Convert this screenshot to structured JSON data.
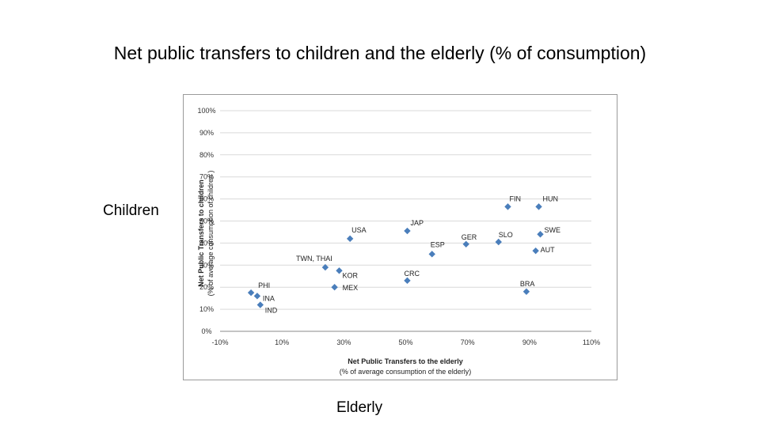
{
  "slide": {
    "title": "Net public transfers to children and the elderly (% of consumption)",
    "left_label": "Children",
    "bottom_label": "Elderly"
  },
  "chart_data": {
    "type": "scatter",
    "title": "",
    "xlabel": "Net Public Transfers to the elderly",
    "xlabel_sub": "(% of average consumption of the elderly)",
    "ylabel": "Net Public Transfers to children",
    "ylabel_sub": "(% of average consumption of children )",
    "xlim": [
      -10,
      110
    ],
    "ylim": [
      0,
      100
    ],
    "xticks": [
      -10,
      10,
      30,
      50,
      70,
      90,
      110
    ],
    "yticks": [
      0,
      10,
      20,
      30,
      40,
      50,
      60,
      70,
      80,
      90,
      100
    ],
    "xtick_labels": [
      "-10%",
      "10%",
      "30%",
      "50%",
      "70%",
      "90%",
      "110%"
    ],
    "ytick_labels": [
      "0%",
      "10%",
      "20%",
      "30%",
      "40%",
      "50%",
      "60%",
      "70%",
      "80%",
      "90%",
      "100%"
    ],
    "grid": true,
    "marker_color": "#4a7ebb",
    "points": [
      {
        "label": "PHI",
        "x": 0,
        "y": 17.5
      },
      {
        "label": "INA",
        "x": 2,
        "y": 16
      },
      {
        "label": "IND",
        "x": 3,
        "y": 12
      },
      {
        "label": "USA",
        "x": 32,
        "y": 42
      },
      {
        "label": "TWN, THAI",
        "x": 24,
        "y": 29
      },
      {
        "label": "KOR",
        "x": 28.5,
        "y": 27.5
      },
      {
        "label": "MEX",
        "x": 27,
        "y": 20
      },
      {
        "label": "JAP",
        "x": 50.5,
        "y": 45.5
      },
      {
        "label": "CRC",
        "x": 50.5,
        "y": 23
      },
      {
        "label": "ESP",
        "x": 58.5,
        "y": 35
      },
      {
        "label": "GER",
        "x": 69.5,
        "y": 39.5
      },
      {
        "label": "SLO",
        "x": 80,
        "y": 40.5
      },
      {
        "label": "FIN",
        "x": 83,
        "y": 56.5
      },
      {
        "label": "HUN",
        "x": 93,
        "y": 56.5
      },
      {
        "label": "SWE",
        "x": 93.5,
        "y": 44
      },
      {
        "label": "AUT",
        "x": 92,
        "y": 36.5
      },
      {
        "label": "BRA",
        "x": 89,
        "y": 18
      }
    ]
  }
}
